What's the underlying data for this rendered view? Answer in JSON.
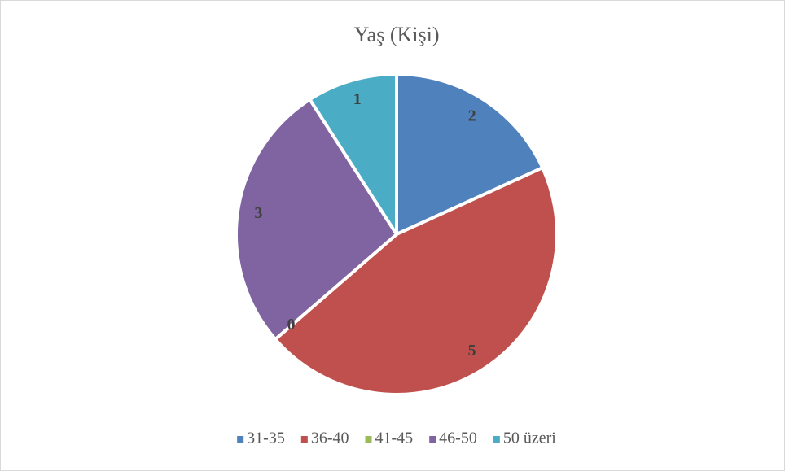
{
  "chart_data": {
    "type": "pie",
    "title": "Yaş (Kişi)",
    "categories": [
      "31-35",
      "36-40",
      "41-45",
      "46-50",
      "50 üzeri"
    ],
    "values": [
      2,
      5,
      0,
      3,
      1
    ],
    "colors": [
      "#4f81bd",
      "#c0504d",
      "#9bbb59",
      "#8064a2",
      "#4bacc6"
    ],
    "legend": "bottom"
  }
}
